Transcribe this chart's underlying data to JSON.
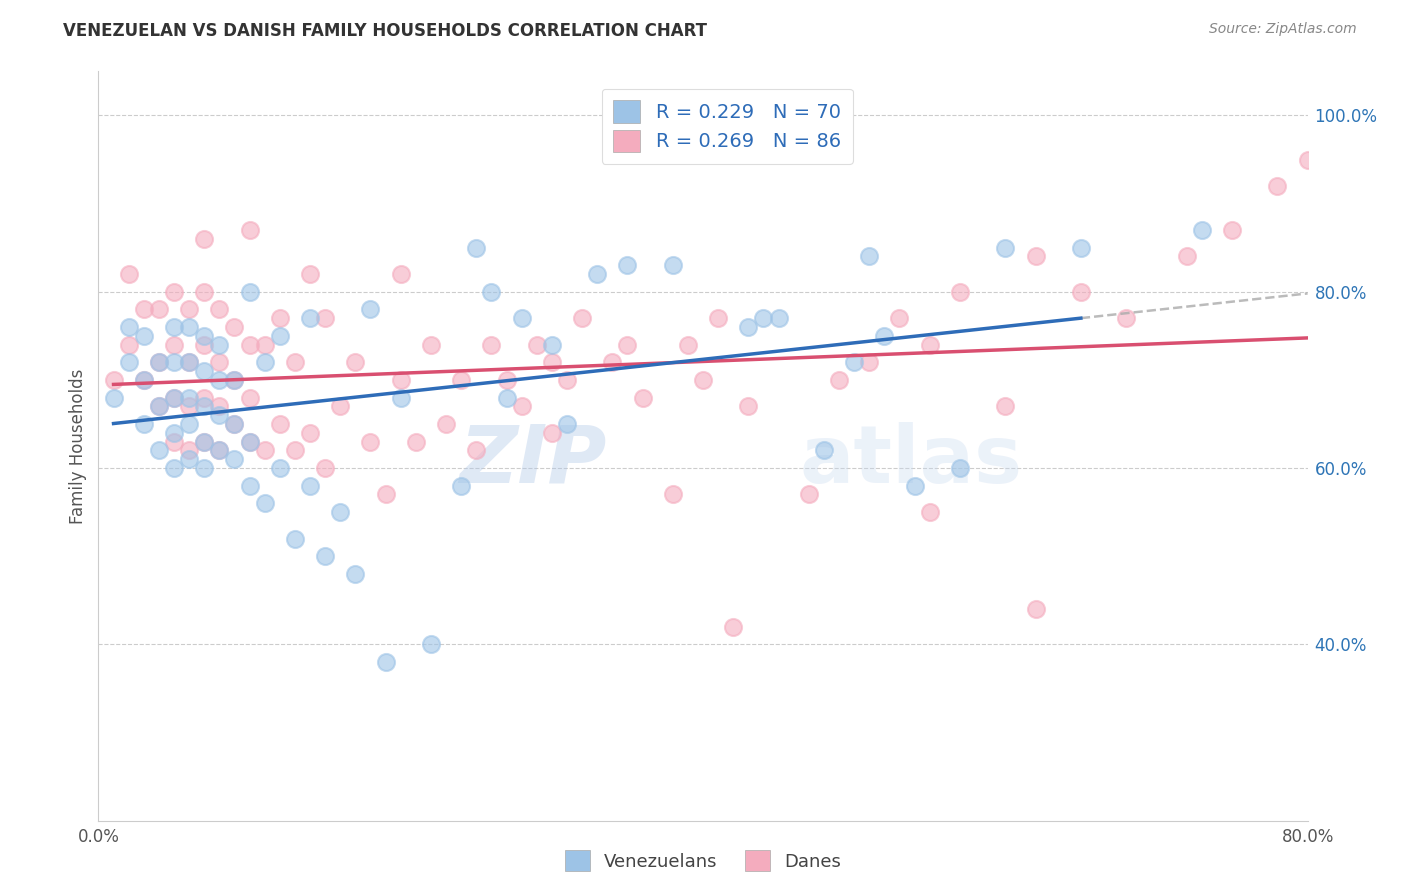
{
  "title": "VENEZUELAN VS DANISH FAMILY HOUSEHOLDS CORRELATION CHART",
  "source": "Source: ZipAtlas.com",
  "ylabel": "Family Households",
  "xlim": [
    0.0,
    0.8
  ],
  "ylim": [
    0.2,
    1.05
  ],
  "x_tick_positions": [
    0.0,
    0.1,
    0.2,
    0.3,
    0.4,
    0.5,
    0.6,
    0.7,
    0.8
  ],
  "x_tick_labels": [
    "0.0%",
    "",
    "",
    "",
    "",
    "",
    "",
    "",
    "80.0%"
  ],
  "y_ticks_right": [
    0.4,
    0.6,
    0.8,
    1.0
  ],
  "y_tick_labels_right": [
    "40.0%",
    "60.0%",
    "80.0%",
    "100.0%"
  ],
  "venezuelan_R": 0.229,
  "venezuelan_N": 70,
  "danish_R": 0.269,
  "danish_N": 86,
  "blue_scatter_color": "#9DC3E6",
  "pink_scatter_color": "#F4ACBE",
  "blue_line_color": "#2E6CB8",
  "pink_line_color": "#D94F70",
  "dash_line_color": "#AAAAAA",
  "legend_text_color": "#2E6CB8",
  "watermark": "ZIPatlas",
  "venezuelan_x": [
    0.01,
    0.02,
    0.02,
    0.03,
    0.03,
    0.03,
    0.04,
    0.04,
    0.04,
    0.05,
    0.05,
    0.05,
    0.05,
    0.05,
    0.06,
    0.06,
    0.06,
    0.06,
    0.06,
    0.07,
    0.07,
    0.07,
    0.07,
    0.07,
    0.08,
    0.08,
    0.08,
    0.08,
    0.09,
    0.09,
    0.09,
    0.1,
    0.1,
    0.1,
    0.11,
    0.11,
    0.12,
    0.12,
    0.13,
    0.14,
    0.14,
    0.15,
    0.16,
    0.17,
    0.18,
    0.19,
    0.2,
    0.22,
    0.24,
    0.25,
    0.26,
    0.27,
    0.28,
    0.3,
    0.31,
    0.33,
    0.35,
    0.38,
    0.43,
    0.44,
    0.45,
    0.48,
    0.5,
    0.51,
    0.52,
    0.54,
    0.57,
    0.6,
    0.65,
    0.73
  ],
  "venezuelan_y": [
    0.68,
    0.72,
    0.76,
    0.65,
    0.7,
    0.75,
    0.62,
    0.67,
    0.72,
    0.6,
    0.64,
    0.68,
    0.72,
    0.76,
    0.61,
    0.65,
    0.68,
    0.72,
    0.76,
    0.6,
    0.63,
    0.67,
    0.71,
    0.75,
    0.62,
    0.66,
    0.7,
    0.74,
    0.61,
    0.65,
    0.7,
    0.58,
    0.63,
    0.8,
    0.56,
    0.72,
    0.6,
    0.75,
    0.52,
    0.58,
    0.77,
    0.5,
    0.55,
    0.48,
    0.78,
    0.38,
    0.68,
    0.4,
    0.58,
    0.85,
    0.8,
    0.68,
    0.77,
    0.74,
    0.65,
    0.82,
    0.83,
    0.83,
    0.76,
    0.77,
    0.77,
    0.62,
    0.72,
    0.84,
    0.75,
    0.58,
    0.6,
    0.85,
    0.85,
    0.87
  ],
  "danish_x": [
    0.01,
    0.02,
    0.02,
    0.03,
    0.03,
    0.04,
    0.04,
    0.04,
    0.05,
    0.05,
    0.05,
    0.05,
    0.06,
    0.06,
    0.06,
    0.06,
    0.07,
    0.07,
    0.07,
    0.07,
    0.07,
    0.08,
    0.08,
    0.08,
    0.08,
    0.09,
    0.09,
    0.09,
    0.1,
    0.1,
    0.1,
    0.1,
    0.11,
    0.11,
    0.12,
    0.12,
    0.13,
    0.13,
    0.14,
    0.14,
    0.15,
    0.15,
    0.16,
    0.17,
    0.18,
    0.19,
    0.2,
    0.2,
    0.21,
    0.22,
    0.23,
    0.24,
    0.25,
    0.26,
    0.27,
    0.28,
    0.29,
    0.3,
    0.3,
    0.31,
    0.32,
    0.34,
    0.35,
    0.36,
    0.38,
    0.39,
    0.4,
    0.41,
    0.43,
    0.47,
    0.49,
    0.51,
    0.53,
    0.55,
    0.57,
    0.6,
    0.62,
    0.65,
    0.68,
    0.72,
    0.75,
    0.78,
    0.8,
    0.62,
    0.42,
    0.55
  ],
  "danish_y": [
    0.7,
    0.74,
    0.82,
    0.7,
    0.78,
    0.67,
    0.72,
    0.78,
    0.63,
    0.68,
    0.74,
    0.8,
    0.62,
    0.67,
    0.72,
    0.78,
    0.63,
    0.68,
    0.74,
    0.8,
    0.86,
    0.62,
    0.67,
    0.72,
    0.78,
    0.65,
    0.7,
    0.76,
    0.63,
    0.68,
    0.74,
    0.87,
    0.62,
    0.74,
    0.65,
    0.77,
    0.62,
    0.72,
    0.64,
    0.82,
    0.6,
    0.77,
    0.67,
    0.72,
    0.63,
    0.57,
    0.7,
    0.82,
    0.63,
    0.74,
    0.65,
    0.7,
    0.62,
    0.74,
    0.7,
    0.67,
    0.74,
    0.72,
    0.64,
    0.7,
    0.77,
    0.72,
    0.74,
    0.68,
    0.57,
    0.74,
    0.7,
    0.77,
    0.67,
    0.57,
    0.7,
    0.72,
    0.77,
    0.74,
    0.8,
    0.67,
    0.84,
    0.8,
    0.77,
    0.84,
    0.87,
    0.92,
    0.95,
    0.44,
    0.42,
    0.55
  ]
}
